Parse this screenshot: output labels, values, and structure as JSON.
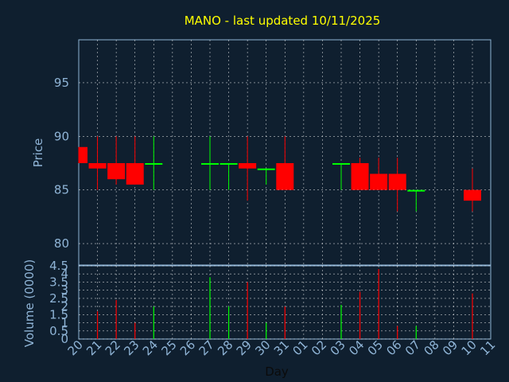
{
  "chart_data": [
    {
      "type": "candlestick",
      "title": "MANO - last updated 10/11/2025",
      "ylabel": "Price",
      "xlabel": "Day",
      "ylim": [
        78,
        99
      ],
      "yticks": [
        80,
        85,
        90,
        95
      ],
      "x_ticks": [
        "20",
        "21",
        "22",
        "23",
        "24",
        "25",
        "26",
        "27",
        "28",
        "29",
        "30",
        "31",
        "01",
        "02",
        "03",
        "04",
        "05",
        "06",
        "07",
        "08",
        "09",
        "10",
        "11"
      ],
      "grid": true,
      "colors": {
        "up": "#00ff00",
        "down": "#ff0000",
        "background": "#0f1f2f",
        "grid": "#ffffff",
        "axis": "#8fb4d6",
        "title": "#ffff00"
      },
      "candles": [
        {
          "day": "20",
          "open": 89.0,
          "high": 89.0,
          "low": 87.5,
          "close": 87.5
        },
        {
          "day": "21",
          "open": 87.5,
          "high": 90.0,
          "low": 85.0,
          "close": 87.0
        },
        {
          "day": "22",
          "open": 87.5,
          "high": 90.0,
          "low": 85.5,
          "close": 86.0
        },
        {
          "day": "23",
          "open": 87.5,
          "high": 90.0,
          "low": 85.5,
          "close": 85.5
        },
        {
          "day": "24",
          "open": 87.5,
          "high": 90.0,
          "low": 85.0,
          "close": 87.5
        },
        {
          "day": "27",
          "open": 87.5,
          "high": 90.0,
          "low": 85.0,
          "close": 87.5
        },
        {
          "day": "28",
          "open": 87.5,
          "high": 87.5,
          "low": 85.0,
          "close": 87.5
        },
        {
          "day": "29",
          "open": 87.5,
          "high": 90.0,
          "low": 84.0,
          "close": 87.0
        },
        {
          "day": "30",
          "open": 87.0,
          "high": 87.0,
          "low": 85.5,
          "close": 87.0
        },
        {
          "day": "31",
          "open": 87.5,
          "high": 90.0,
          "low": 85.0,
          "close": 85.0
        },
        {
          "day": "03",
          "open": 87.5,
          "high": 87.5,
          "low": 85.0,
          "close": 87.5
        },
        {
          "day": "04",
          "open": 87.5,
          "high": 88.0,
          "low": 85.0,
          "close": 85.0
        },
        {
          "day": "05",
          "open": 86.5,
          "high": 88.0,
          "low": 85.0,
          "close": 85.0
        },
        {
          "day": "06",
          "open": 86.5,
          "high": 88.0,
          "low": 83.0,
          "close": 85.0
        },
        {
          "day": "07",
          "open": 85.0,
          "high": 85.0,
          "low": 83.0,
          "close": 85.0
        },
        {
          "day": "10",
          "open": 85.0,
          "high": 87.0,
          "low": 83.0,
          "close": 84.0
        }
      ]
    },
    {
      "type": "bar",
      "ylabel": "Volume (0000)",
      "xlabel": "Day",
      "ylim": [
        0,
        4.5
      ],
      "yticks": [
        "0",
        "0.5",
        "1",
        "1.5",
        "2",
        "2.5",
        "3",
        "3.5",
        "4",
        "4.5"
      ],
      "x_ticks": [
        "20",
        "21",
        "22",
        "23",
        "24",
        "25",
        "26",
        "27",
        "28",
        "29",
        "30",
        "31",
        "01",
        "02",
        "03",
        "04",
        "05",
        "06",
        "07",
        "08",
        "09",
        "10",
        "11"
      ],
      "grid": true,
      "bars": [
        {
          "day": "20",
          "value": 0.0,
          "color": "down"
        },
        {
          "day": "21",
          "value": 1.7,
          "color": "down"
        },
        {
          "day": "22",
          "value": 2.4,
          "color": "down"
        },
        {
          "day": "23",
          "value": 1.0,
          "color": "down"
        },
        {
          "day": "24",
          "value": 2.0,
          "color": "up"
        },
        {
          "day": "27",
          "value": 3.8,
          "color": "up"
        },
        {
          "day": "28",
          "value": 2.0,
          "color": "up"
        },
        {
          "day": "29",
          "value": 3.5,
          "color": "down"
        },
        {
          "day": "30",
          "value": 1.0,
          "color": "up"
        },
        {
          "day": "31",
          "value": 2.0,
          "color": "down"
        },
        {
          "day": "03",
          "value": 2.1,
          "color": "up"
        },
        {
          "day": "04",
          "value": 2.9,
          "color": "down"
        },
        {
          "day": "05",
          "value": 4.3,
          "color": "down"
        },
        {
          "day": "06",
          "value": 0.8,
          "color": "down"
        },
        {
          "day": "07",
          "value": 0.8,
          "color": "up"
        },
        {
          "day": "10",
          "value": 2.8,
          "color": "down"
        }
      ]
    }
  ]
}
